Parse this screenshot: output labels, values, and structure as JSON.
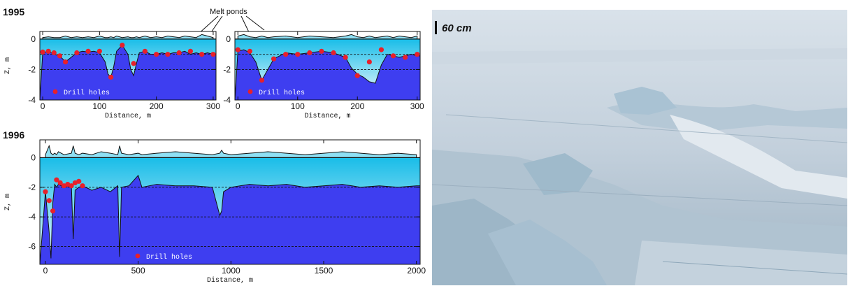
{
  "figure": {
    "panel_1995_year": "1995",
    "panel_1996_year": "1996",
    "melt_ponds_label": "Melt ponds",
    "photo_scale_label": "60 cm"
  },
  "chart_data": [
    {
      "id": "c95a",
      "type": "area",
      "year": "1995",
      "xlabel": "Distance, m",
      "ylabel": "Z, m",
      "xlim": [
        -5,
        305
      ],
      "ylim": [
        -4,
        0.5
      ],
      "xticks": [
        0,
        100,
        200,
        300
      ],
      "yticks": [
        0,
        -2,
        -4
      ],
      "legend": "Drill holes",
      "grid_dashed": [
        -1,
        -2
      ],
      "x": [
        0,
        10,
        20,
        30,
        40,
        50,
        60,
        70,
        80,
        90,
        100,
        110,
        115,
        120,
        125,
        130,
        140,
        150,
        155,
        160,
        165,
        170,
        180,
        190,
        200,
        210,
        220,
        230,
        240,
        250,
        260,
        270,
        280,
        290,
        300
      ],
      "surface": [
        0.1,
        0.15,
        0.1,
        0.1,
        0.2,
        0.1,
        0.15,
        0.1,
        0.15,
        0.1,
        0.2,
        0.1,
        0.1,
        0.15,
        0.1,
        0.2,
        0.1,
        0.15,
        0.1,
        0.1,
        0.15,
        0.1,
        0.2,
        0.1,
        0.15,
        0.1,
        0.2,
        0.15,
        0.1,
        0.2,
        0.15,
        0.1,
        0.3,
        0.2,
        0.1
      ],
      "bottom": [
        -0.9,
        -0.8,
        -1.0,
        -1.1,
        -1.5,
        -1.2,
        -0.9,
        -0.8,
        -0.85,
        -0.8,
        -0.9,
        -1.5,
        -2.3,
        -2.5,
        -1.8,
        -0.8,
        -0.4,
        -1.0,
        -2.0,
        -2.4,
        -1.6,
        -0.9,
        -0.8,
        -1.0,
        -1.0,
        -0.9,
        -1.0,
        -0.9,
        -0.9,
        -0.8,
        -1.0,
        -0.9,
        -1.0,
        -0.9,
        -1.0
      ],
      "drill_x": [
        0,
        10,
        20,
        30,
        40,
        60,
        80,
        100,
        120,
        140,
        160,
        180,
        200,
        220,
        240,
        260,
        280,
        300
      ],
      "drill_y": [
        -0.85,
        -0.8,
        -0.9,
        -1.1,
        -1.5,
        -0.9,
        -0.8,
        -0.8,
        -2.5,
        -0.4,
        -1.6,
        -0.8,
        -1.0,
        -1.0,
        -0.9,
        -0.8,
        -1.0,
        -1.0
      ]
    },
    {
      "id": "c95b",
      "type": "area",
      "year": "1995",
      "xlabel": "Distance, m",
      "ylabel": "",
      "xlim": [
        -5,
        305
      ],
      "ylim": [
        -4,
        0.5
      ],
      "xticks": [
        0,
        100,
        200,
        300
      ],
      "yticks": [
        0,
        -2,
        -4
      ],
      "legend": "Drill holes",
      "grid_dashed": [
        -1,
        -2
      ],
      "x": [
        0,
        10,
        20,
        30,
        40,
        50,
        60,
        80,
        100,
        120,
        140,
        160,
        180,
        190,
        200,
        210,
        220,
        230,
        240,
        250,
        260,
        270,
        280,
        290,
        300
      ],
      "surface": [
        0.2,
        0.3,
        0.15,
        0.1,
        0.2,
        0.1,
        0.15,
        0.2,
        0.1,
        0.2,
        0.15,
        0.1,
        0.2,
        0.3,
        0.15,
        0.1,
        0.2,
        0.1,
        0.15,
        0.2,
        0.1,
        0.2,
        0.15,
        0.1,
        0.2
      ],
      "bottom": [
        -0.8,
        -0.7,
        -0.9,
        -1.5,
        -2.7,
        -2.0,
        -1.3,
        -0.9,
        -1.0,
        -0.9,
        -0.8,
        -0.9,
        -1.2,
        -1.9,
        -2.3,
        -2.5,
        -2.8,
        -2.9,
        -1.7,
        -1.0,
        -1.1,
        -1.2,
        -1.1,
        -1.0,
        -1.1
      ],
      "drill_x": [
        0,
        20,
        40,
        60,
        80,
        100,
        120,
        140,
        160,
        180,
        200,
        220,
        240,
        260,
        280,
        300
      ],
      "drill_y": [
        -0.7,
        -0.8,
        -2.7,
        -1.3,
        -1.0,
        -1.0,
        -0.9,
        -0.8,
        -0.9,
        -1.2,
        -2.4,
        -1.5,
        -0.7,
        -1.1,
        -1.2,
        -1.0
      ]
    },
    {
      "id": "c96",
      "type": "area",
      "year": "1996",
      "xlabel": "Distance, m",
      "ylabel": "Z, m",
      "xlim": [
        -30,
        2020
      ],
      "ylim": [
        -7.2,
        1.2
      ],
      "xticks": [
        0,
        500,
        1000,
        1500,
        2000
      ],
      "yticks": [
        0,
        -2,
        -4,
        -6
      ],
      "legend": "Drill holes",
      "grid_dashed": [
        -2,
        -4,
        -6
      ],
      "x": [
        0,
        20,
        30,
        40,
        50,
        60,
        70,
        100,
        140,
        150,
        160,
        180,
        200,
        250,
        300,
        350,
        390,
        400,
        410,
        450,
        500,
        520,
        600,
        700,
        800,
        900,
        940,
        950,
        960,
        1000,
        1100,
        1200,
        1300,
        1400,
        1500,
        1600,
        1700,
        1800,
        1900,
        2000
      ],
      "surface": [
        0.2,
        0.8,
        0.3,
        0.2,
        0.3,
        0.2,
        0.4,
        0.2,
        0.3,
        0.8,
        0.3,
        0.2,
        0.3,
        0.2,
        0.4,
        0.3,
        0.2,
        0.8,
        0.3,
        0.2,
        0.3,
        0.2,
        0.3,
        0.4,
        0.3,
        0.2,
        0.3,
        0.5,
        0.3,
        0.2,
        0.3,
        0.4,
        0.3,
        0.2,
        0.3,
        0.4,
        0.3,
        0.2,
        0.3,
        0.2
      ],
      "bottom": [
        -2.3,
        -5.0,
        -6.8,
        -3.0,
        -1.8,
        -2.0,
        -1.8,
        -2.0,
        -1.9,
        -5.5,
        -2.2,
        -2.0,
        -1.9,
        -2.2,
        -2.0,
        -2.3,
        -1.9,
        -6.7,
        -2.0,
        -1.9,
        -1.2,
        -2.0,
        -1.8,
        -1.9,
        -1.9,
        -2.0,
        -3.9,
        -3.6,
        -2.3,
        -2.0,
        -1.8,
        -1.9,
        -1.8,
        -2.0,
        -1.9,
        -1.8,
        -2.0,
        -1.9,
        -2.0,
        -1.9
      ],
      "drill_x": [
        0,
        20,
        40,
        60,
        80,
        100,
        120,
        140,
        160,
        180,
        200
      ],
      "drill_y": [
        -2.3,
        -2.9,
        -3.6,
        -1.5,
        -1.7,
        -1.9,
        -1.8,
        -1.9,
        -1.7,
        -1.6,
        -1.9
      ]
    }
  ]
}
